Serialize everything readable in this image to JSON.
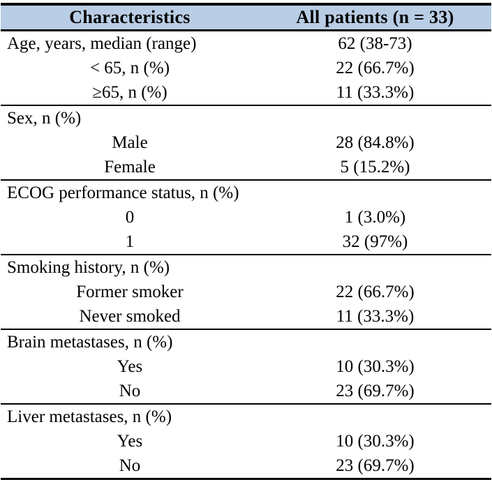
{
  "colors": {
    "header_bg": "#b9cde5",
    "border": "#000000",
    "text": "#000000",
    "page_bg": "#ffffff"
  },
  "table": {
    "header": {
      "col1": "Characteristics",
      "col2": "All patients (n = 33)"
    },
    "sections": [
      {
        "rows": [
          {
            "label": "Age, years, median (range)",
            "value": "62 (38-73)"
          },
          {
            "label": "< 65, n (%)",
            "value": "22 (66.7%)"
          },
          {
            "label": "≥65, n (%)",
            "value": "11 (33.3%)"
          }
        ]
      },
      {
        "rows": [
          {
            "label": "Sex, n (%)",
            "value": ""
          },
          {
            "label": "Male",
            "value": "28 (84.8%)"
          },
          {
            "label": "Female",
            "value": "5 (15.2%)"
          }
        ]
      },
      {
        "rows": [
          {
            "label": "ECOG performance status, n (%)",
            "value": ""
          },
          {
            "label": "0",
            "value": "1 (3.0%)"
          },
          {
            "label": "1",
            "value": "32 (97%)"
          }
        ]
      },
      {
        "rows": [
          {
            "label": "Smoking history, n (%)",
            "value": ""
          },
          {
            "label": "Former smoker",
            "value": "22 (66.7%)"
          },
          {
            "label": "Never smoked",
            "value": "11 (33.3%)"
          }
        ]
      },
      {
        "rows": [
          {
            "label": "Brain metastases, n (%)",
            "value": ""
          },
          {
            "label": "Yes",
            "value": "10 (30.3%)"
          },
          {
            "label": "No",
            "value": "23 (69.7%)"
          }
        ]
      },
      {
        "rows": [
          {
            "label": "Liver metastases, n (%)",
            "value": ""
          },
          {
            "label": "Yes",
            "value": "10 (30.3%)"
          },
          {
            "label": "No",
            "value": "23 (69.7%)"
          }
        ]
      }
    ]
  }
}
